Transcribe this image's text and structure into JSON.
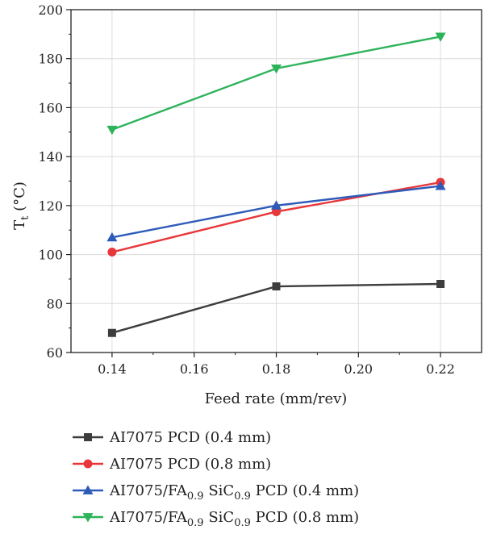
{
  "chart_data": {
    "type": "line",
    "title": "",
    "xlabel": "Feed rate (mm/rev)",
    "ylabel": {
      "main": "T",
      "sub": "t",
      "unit": " (°C)"
    },
    "x": [
      0.14,
      0.18,
      0.22
    ],
    "xlim": [
      0.13,
      0.23
    ],
    "ylim": [
      60,
      200
    ],
    "xticks": [
      "0.14",
      "0.16",
      "0.18",
      "0.20",
      "0.22"
    ],
    "xtick_values": [
      0.14,
      0.16,
      0.18,
      0.2,
      0.22
    ],
    "yticks": [
      "60",
      "80",
      "100",
      "120",
      "140",
      "160",
      "180",
      "200"
    ],
    "ytick_values": [
      60,
      80,
      100,
      120,
      140,
      160,
      180,
      200
    ],
    "grid": true,
    "legend_position": "bottom",
    "series": [
      {
        "name": "AI7075 PCD (0.4 mm)",
        "name_parts": [
          {
            "t": "AI7075 PCD (0.4 mm)",
            "sub": false
          }
        ],
        "values": [
          68,
          87,
          88
        ],
        "color": "#3d3d3d",
        "marker": "square"
      },
      {
        "name": "AI7075 PCD (0.8 mm)",
        "name_parts": [
          {
            "t": "AI7075 PCD (0.8 mm)",
            "sub": false
          }
        ],
        "values": [
          101,
          117.5,
          129.5
        ],
        "color": "#e8373a",
        "marker": "circle"
      },
      {
        "name": "AI7075/FA0.9 SiC0.9 PCD (0.4 mm)",
        "name_parts": [
          {
            "t": "AI7075/FA",
            "sub": false
          },
          {
            "t": "0.9",
            "sub": true
          },
          {
            "t": " SiC",
            "sub": false
          },
          {
            "t": "0.9",
            "sub": true
          },
          {
            "t": " PCD (0.4 mm)",
            "sub": false
          }
        ],
        "values": [
          107,
          120,
          128
        ],
        "color": "#2e5bb8",
        "marker": "triangle-up"
      },
      {
        "name": "AI7075/FA0.9 SiC0.9 PCD (0.8 mm)",
        "name_parts": [
          {
            "t": "AI7075/FA",
            "sub": false
          },
          {
            "t": "0.9",
            "sub": true
          },
          {
            "t": " SiC",
            "sub": false
          },
          {
            "t": "0.9",
            "sub": true
          },
          {
            "t": " PCD (0.8 mm)",
            "sub": false
          }
        ],
        "values": [
          151,
          176,
          189
        ],
        "color": "#2db35a",
        "marker": "triangle-down"
      }
    ]
  }
}
